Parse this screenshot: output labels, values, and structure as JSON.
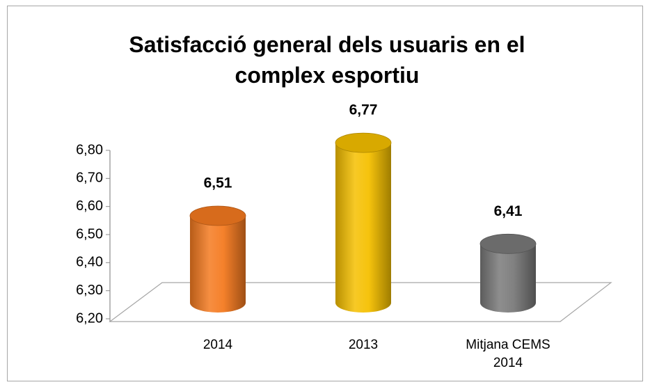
{
  "chart_data": {
    "type": "bar3d",
    "title": "Satisfacció general dels usuaris en el complex esportiu",
    "categories": [
      "2014",
      "2013",
      "Mitjana CEMS 2014"
    ],
    "values": [
      6.51,
      6.77,
      6.41
    ],
    "value_labels": [
      "6,51",
      "6,77",
      "6,41"
    ],
    "colors": [
      "#f47a20",
      "#f5c000",
      "#7a7a7a"
    ],
    "ylim": [
      6.2,
      6.8
    ],
    "yticks": [
      {
        "value": 6.2,
        "label": "6,20"
      },
      {
        "value": 6.3,
        "label": "6,30"
      },
      {
        "value": 6.4,
        "label": "6,40"
      },
      {
        "value": 6.5,
        "label": "6,50"
      },
      {
        "value": 6.6,
        "label": "6,60"
      },
      {
        "value": 6.7,
        "label": "6,70"
      },
      {
        "value": 6.8,
        "label": "6,80"
      }
    ]
  }
}
